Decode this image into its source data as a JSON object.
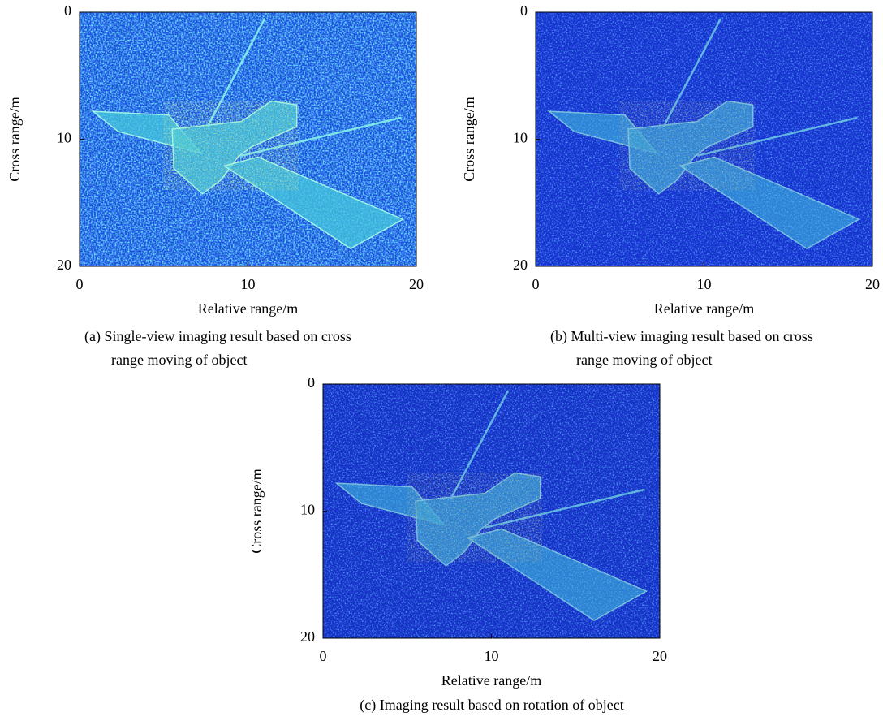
{
  "chart_data": [
    {
      "type": "image",
      "colormap": "jet",
      "xlabel": "Relative range/m",
      "ylabel": "Cross range/m",
      "xlim": [
        0,
        20
      ],
      "ylim": [
        0,
        20
      ],
      "y_inverted": true,
      "xticks": [
        0,
        10,
        20
      ],
      "yticks": [
        0,
        10,
        20
      ],
      "caption": [
        "(a) Single-view imaging result based on cross",
        "range moving of object"
      ]
    },
    {
      "type": "image",
      "colormap": "jet",
      "xlabel": "Relative range/m",
      "ylabel": "Cross range/m",
      "xlim": [
        0,
        20
      ],
      "ylim": [
        0,
        20
      ],
      "y_inverted": true,
      "xticks": [
        0,
        10,
        20
      ],
      "yticks": [
        0,
        10,
        20
      ],
      "caption": [
        "(b) Multi-view imaging result based on cross",
        "range moving of object"
      ]
    },
    {
      "type": "image",
      "colormap": "jet",
      "xlabel": "Relative range/m",
      "ylabel": "Cross range/m",
      "xlim": [
        0,
        20
      ],
      "ylim": [
        0,
        20
      ],
      "y_inverted": true,
      "xticks": [
        0,
        10,
        20
      ],
      "yticks": [
        0,
        10,
        20
      ],
      "caption": [
        "(c) Imaging result based on rotation of object"
      ]
    }
  ]
}
